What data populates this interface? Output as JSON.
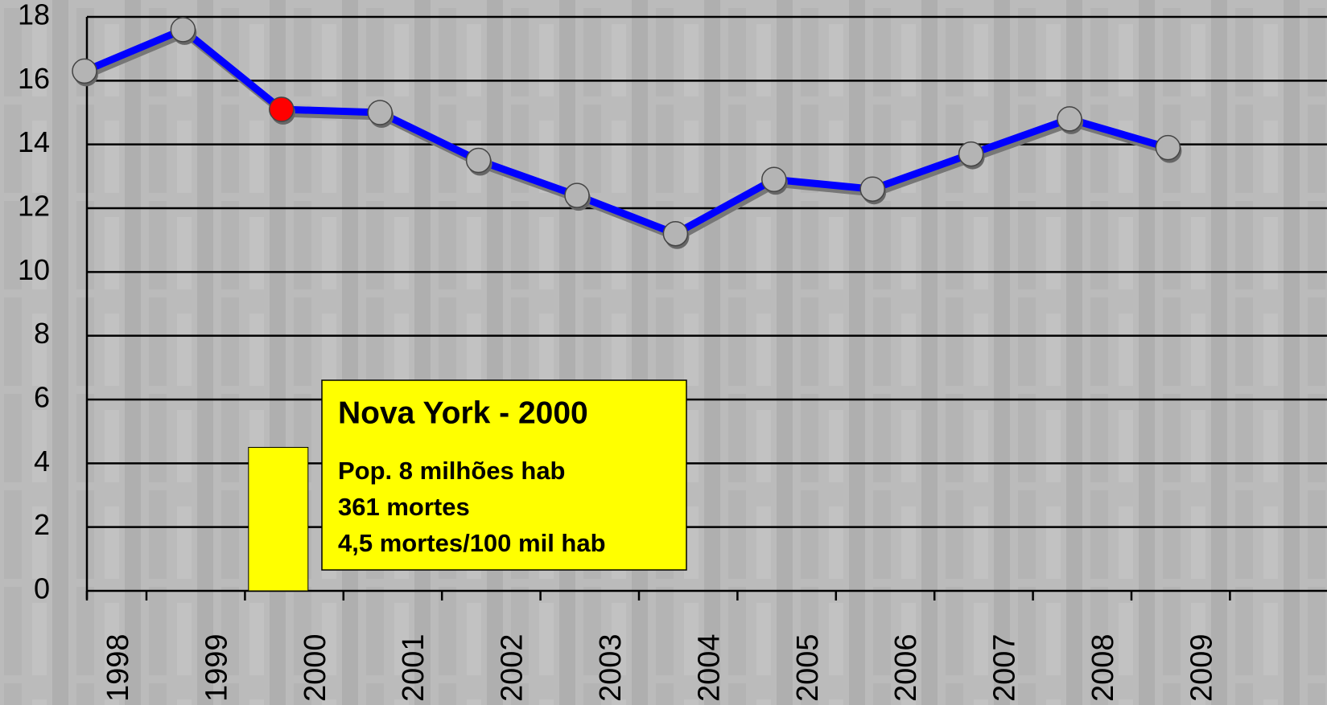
{
  "chart_data": {
    "type": "line",
    "categories": [
      "1998",
      "1999",
      "2000",
      "2001",
      "2002",
      "2003",
      "2004",
      "2005",
      "2006",
      "2007",
      "2008",
      "2009"
    ],
    "series": [
      {
        "color": "#0000ff",
        "marker_color": "#b4b4b4",
        "values": [
          16.3,
          17.6,
          15.1,
          15.0,
          13.5,
          12.4,
          11.2,
          12.9,
          12.6,
          13.7,
          14.8,
          13.9
        ]
      }
    ],
    "highlight": {
      "index": 2,
      "color": "#ff0000"
    },
    "bar": {
      "color": "#ffff00",
      "values": [
        null,
        null,
        4.5,
        null,
        null,
        null,
        null,
        null,
        null,
        null,
        null,
        null
      ]
    },
    "ylim": [
      0,
      18
    ],
    "yticks": [
      0,
      2,
      4,
      6,
      8,
      10,
      12,
      14,
      16,
      18
    ],
    "grid": true,
    "annotation": {
      "title": "Nova York - 2000",
      "lines": [
        "Pop. 8 milhões hab",
        "361 mortes",
        "4,5 mortes/100 mil hab"
      ]
    }
  }
}
